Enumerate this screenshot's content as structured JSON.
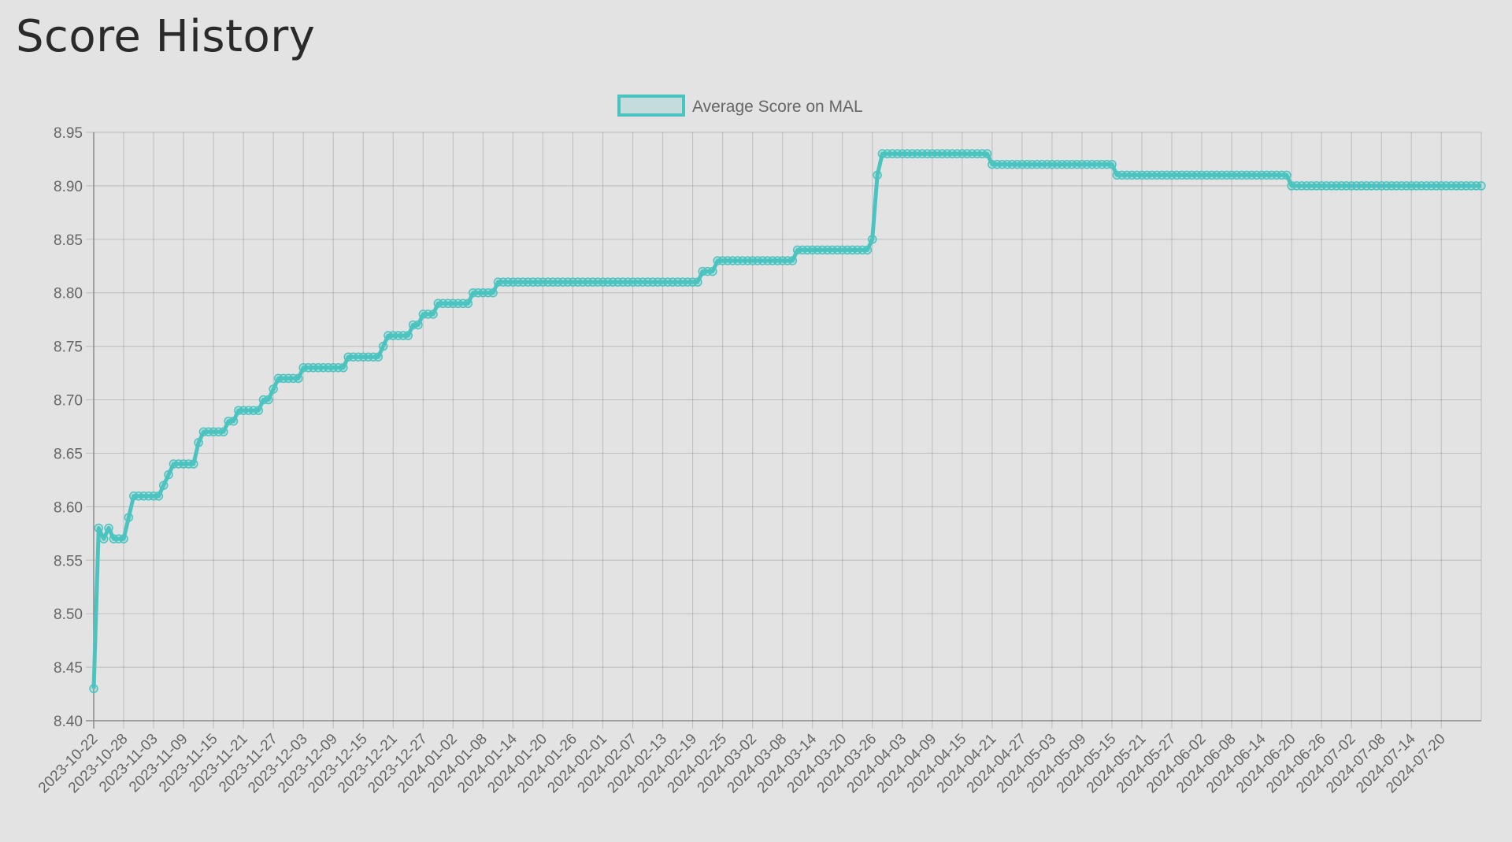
{
  "page": {
    "title": "Score History"
  },
  "chart_data": {
    "type": "line",
    "title": "Score History",
    "legend": {
      "label": "Average Score on MAL",
      "placement": "top-center"
    },
    "color": "#4bc4c1",
    "xlabel": "",
    "ylabel": "",
    "ylim": [
      8.4,
      8.95
    ],
    "yticks": [
      "8.40",
      "8.45",
      "8.50",
      "8.55",
      "8.60",
      "8.65",
      "8.70",
      "8.75",
      "8.80",
      "8.85",
      "8.90",
      "8.95"
    ],
    "n_points": 279,
    "x_tick_every": 6,
    "x_tick_labels": [
      "2023-10-22",
      "2023-10-28",
      "2023-11-03",
      "2023-11-09",
      "2023-11-15",
      "2023-11-21",
      "2023-11-27",
      "2023-12-03",
      "2023-12-09",
      "2023-12-15",
      "2023-12-21",
      "2023-12-27",
      "2024-01-02",
      "2024-01-08",
      "2024-01-14",
      "2024-01-20",
      "2024-01-26",
      "2024-02-01",
      "2024-02-07",
      "2024-02-13",
      "2024-02-19",
      "2024-02-25",
      "2024-03-02",
      "2024-03-08",
      "2024-03-14",
      "2024-03-20",
      "2024-03-26",
      "2024-04-03",
      "2024-04-09",
      "2024-04-15",
      "2024-04-21",
      "2024-04-27",
      "2024-05-03",
      "2024-05-09",
      "2024-05-15",
      "2024-05-21",
      "2024-05-27",
      "2024-06-02",
      "2024-06-08",
      "2024-06-14",
      "2024-06-20",
      "2024-06-26",
      "2024-07-02",
      "2024-07-08",
      "2024-07-14",
      "2024-07-20"
    ],
    "steps": [
      {
        "i": 0,
        "v": 8.43
      },
      {
        "i": 1,
        "v": 8.58
      },
      {
        "i": 2,
        "v": 8.57
      },
      {
        "i": 3,
        "v": 8.58
      },
      {
        "i": 4,
        "v": 8.57
      },
      {
        "i": 7,
        "v": 8.59
      },
      {
        "i": 8,
        "v": 8.61
      },
      {
        "i": 14,
        "v": 8.62
      },
      {
        "i": 15,
        "v": 8.63
      },
      {
        "i": 16,
        "v": 8.64
      },
      {
        "i": 21,
        "v": 8.66
      },
      {
        "i": 22,
        "v": 8.67
      },
      {
        "i": 27,
        "v": 8.68
      },
      {
        "i": 29,
        "v": 8.69
      },
      {
        "i": 34,
        "v": 8.7
      },
      {
        "i": 36,
        "v": 8.71
      },
      {
        "i": 37,
        "v": 8.72
      },
      {
        "i": 42,
        "v": 8.73
      },
      {
        "i": 51,
        "v": 8.74
      },
      {
        "i": 58,
        "v": 8.75
      },
      {
        "i": 59,
        "v": 8.76
      },
      {
        "i": 64,
        "v": 8.77
      },
      {
        "i": 66,
        "v": 8.78
      },
      {
        "i": 69,
        "v": 8.79
      },
      {
        "i": 76,
        "v": 8.8
      },
      {
        "i": 81,
        "v": 8.81
      },
      {
        "i": 122,
        "v": 8.82
      },
      {
        "i": 125,
        "v": 8.83
      },
      {
        "i": 141,
        "v": 8.84
      },
      {
        "i": 156,
        "v": 8.85
      },
      {
        "i": 157,
        "v": 8.91
      },
      {
        "i": 158,
        "v": 8.93
      },
      {
        "i": 180,
        "v": 8.92
      },
      {
        "i": 205,
        "v": 8.91
      },
      {
        "i": 240,
        "v": 8.9
      }
    ]
  }
}
